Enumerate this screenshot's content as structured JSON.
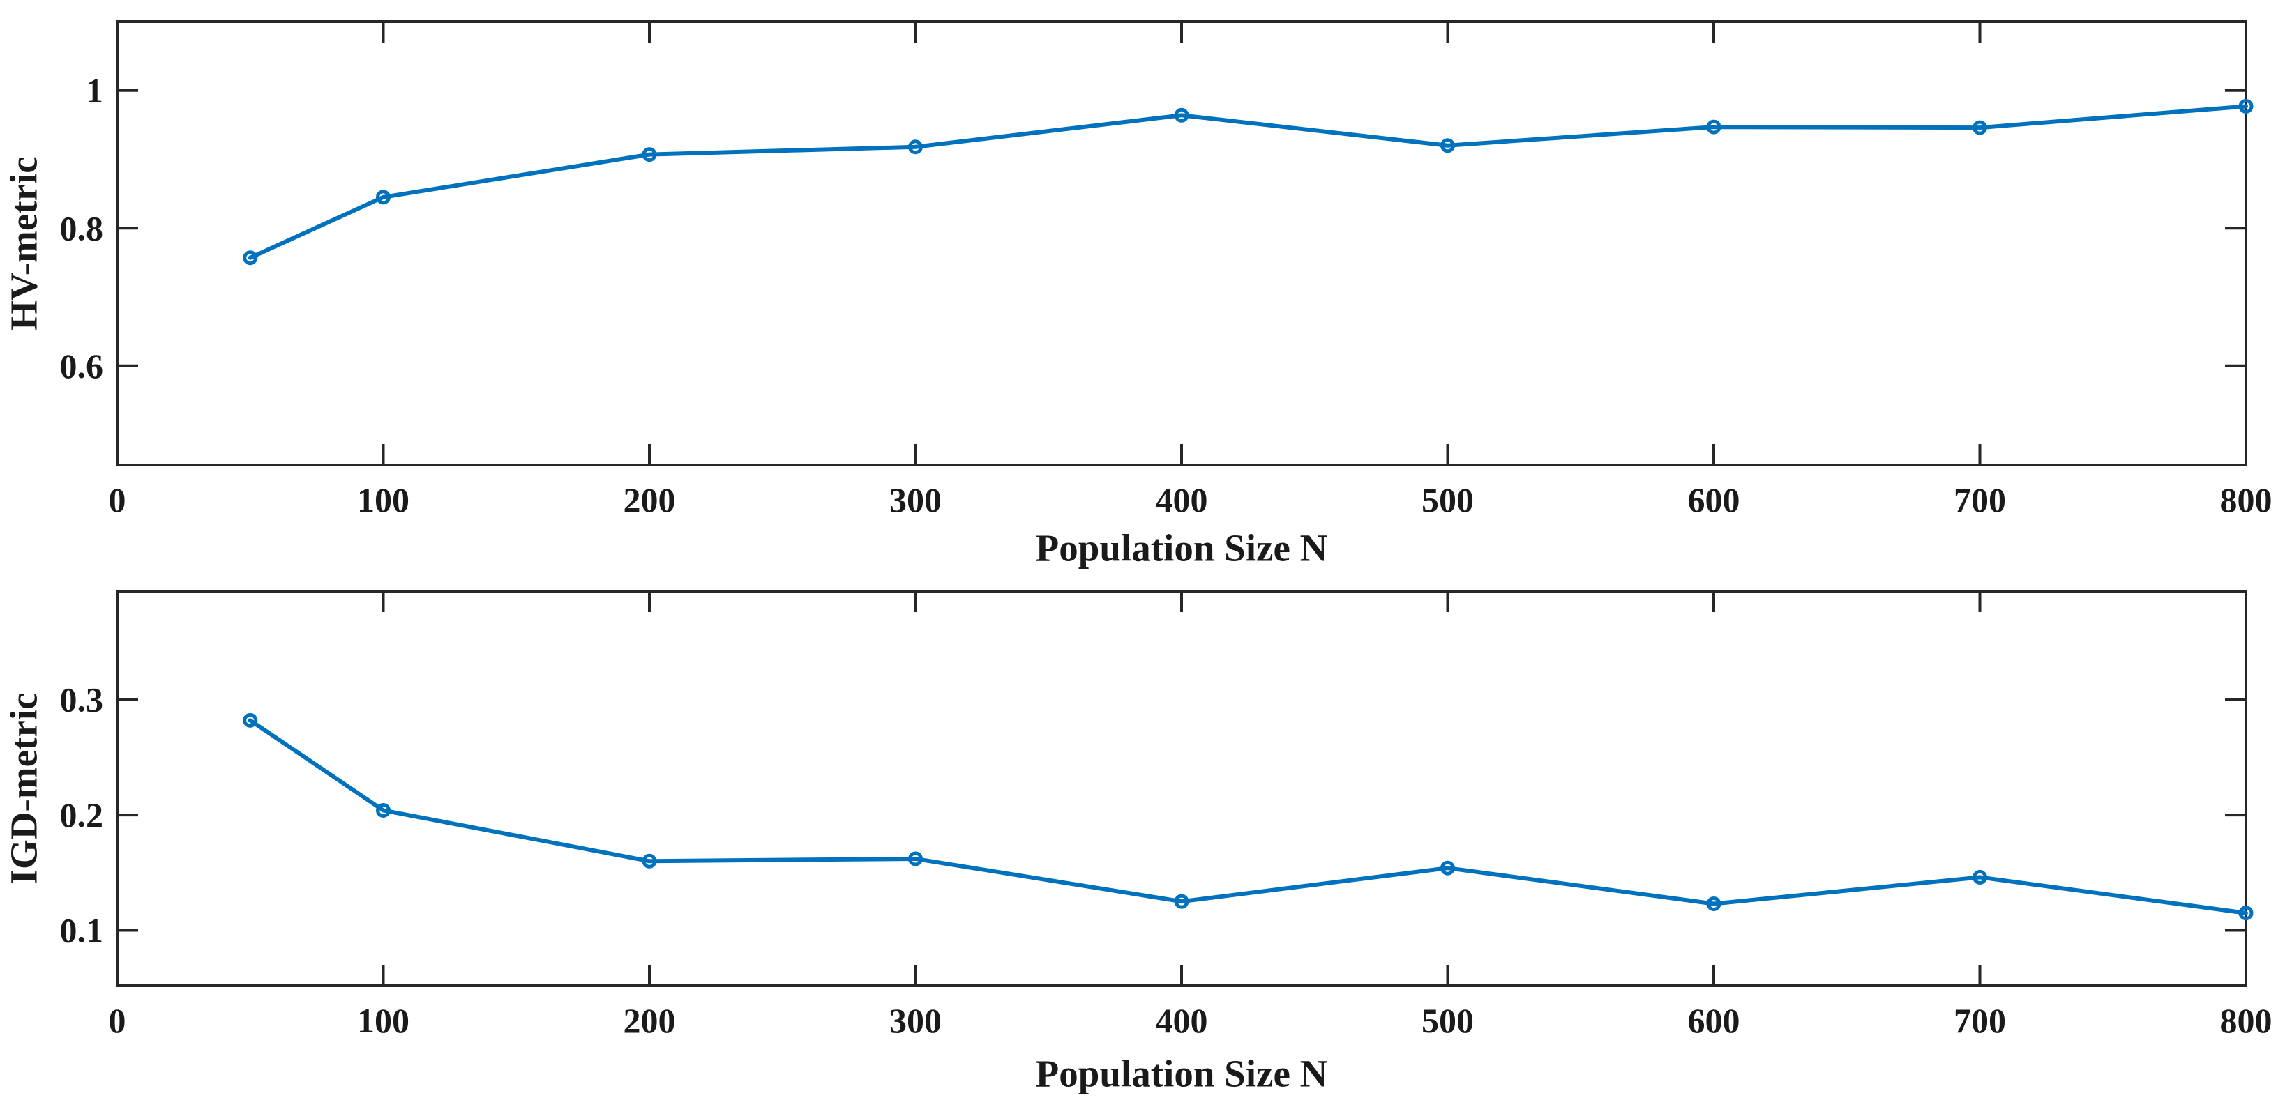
{
  "figure": {
    "background": "#ffffff",
    "axis_color": "#262626",
    "text_color": "#1a1a1a"
  },
  "chart_data": [
    {
      "type": "line",
      "title": "",
      "xlabel": "Population Size N",
      "ylabel": "HV-metric",
      "x": [
        50,
        100,
        200,
        300,
        400,
        500,
        600,
        700,
        800
      ],
      "values": [
        0.757,
        0.845,
        0.907,
        0.918,
        0.964,
        0.92,
        0.947,
        0.946,
        0.977
      ],
      "xlim": [
        0,
        800
      ],
      "ylim": [
        0.456,
        1.1
      ],
      "xtick_values": [
        0,
        100,
        200,
        300,
        400,
        500,
        600,
        700,
        800
      ],
      "xtick_labels": [
        "0",
        "100",
        "200",
        "300",
        "400",
        "500",
        "600",
        "700",
        "800"
      ],
      "ytick_values": [
        0.6,
        0.8,
        1
      ],
      "ytick_labels": [
        "0.6",
        "0.8",
        "1"
      ],
      "line_color": "#0072BD",
      "marker": "circle",
      "marker_fill": "none",
      "grid": false,
      "legend": null,
      "box": true
    },
    {
      "type": "line",
      "title": "",
      "xlabel": "Population Size N",
      "ylabel": "IGD-metric",
      "x": [
        50,
        100,
        200,
        300,
        400,
        500,
        600,
        700,
        800
      ],
      "values": [
        0.282,
        0.204,
        0.16,
        0.162,
        0.125,
        0.154,
        0.123,
        0.146,
        0.115
      ],
      "xlim": [
        0,
        800
      ],
      "ylim": [
        0.052,
        0.394
      ],
      "xtick_values": [
        0,
        100,
        200,
        300,
        400,
        500,
        600,
        700,
        800
      ],
      "xtick_labels": [
        "0",
        "100",
        "200",
        "300",
        "400",
        "500",
        "600",
        "700",
        "800"
      ],
      "ytick_values": [
        0.1,
        0.2,
        0.3
      ],
      "ytick_labels": [
        "0.1",
        "0.2",
        "0.3"
      ],
      "line_color": "#0072BD",
      "marker": "circle",
      "marker_fill": "none",
      "grid": false,
      "legend": null,
      "box": true
    }
  ]
}
